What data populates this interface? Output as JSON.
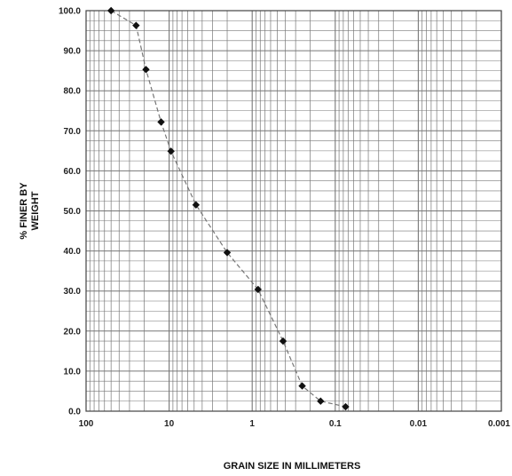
{
  "chart_data": {
    "type": "line",
    "xlabel": "GRAIN SIZE IN MILLIMETERS",
    "ylabel_lines": [
      "% FINER BY",
      "WEIGHT"
    ],
    "x_scale": "log",
    "x_reversed": true,
    "xlim": [
      100,
      0.001
    ],
    "ylim": [
      0,
      100
    ],
    "grid": true,
    "x_tick_labels": [
      "100",
      "10",
      "1",
      "0.1",
      "0.01",
      "0.001"
    ],
    "x_tick_values": [
      100,
      10,
      1,
      0.1,
      0.01,
      0.001
    ],
    "y_tick_labels": [
      "0.0",
      "10.0",
      "20.0",
      "30.0",
      "40.0",
      "50.0",
      "60.0",
      "70.0",
      "80.0",
      "90.0",
      "100.0"
    ],
    "y_tick_values": [
      0,
      10,
      20,
      30,
      40,
      50,
      60,
      70,
      80,
      90,
      100
    ],
    "series": [
      {
        "x": [
          50,
          25,
          19,
          12.5,
          9.5,
          4.75,
          2,
          0.85,
          0.425,
          0.25,
          0.15,
          0.075
        ],
        "y": [
          100,
          96.3,
          85.3,
          72.2,
          64.9,
          51.5,
          39.6,
          30.4,
          17.5,
          6.3,
          2.5,
          1.1
        ]
      }
    ],
    "colors": {
      "marker": "#111111",
      "line": "#777777",
      "grid": "#777777",
      "frame": "#444444"
    }
  }
}
